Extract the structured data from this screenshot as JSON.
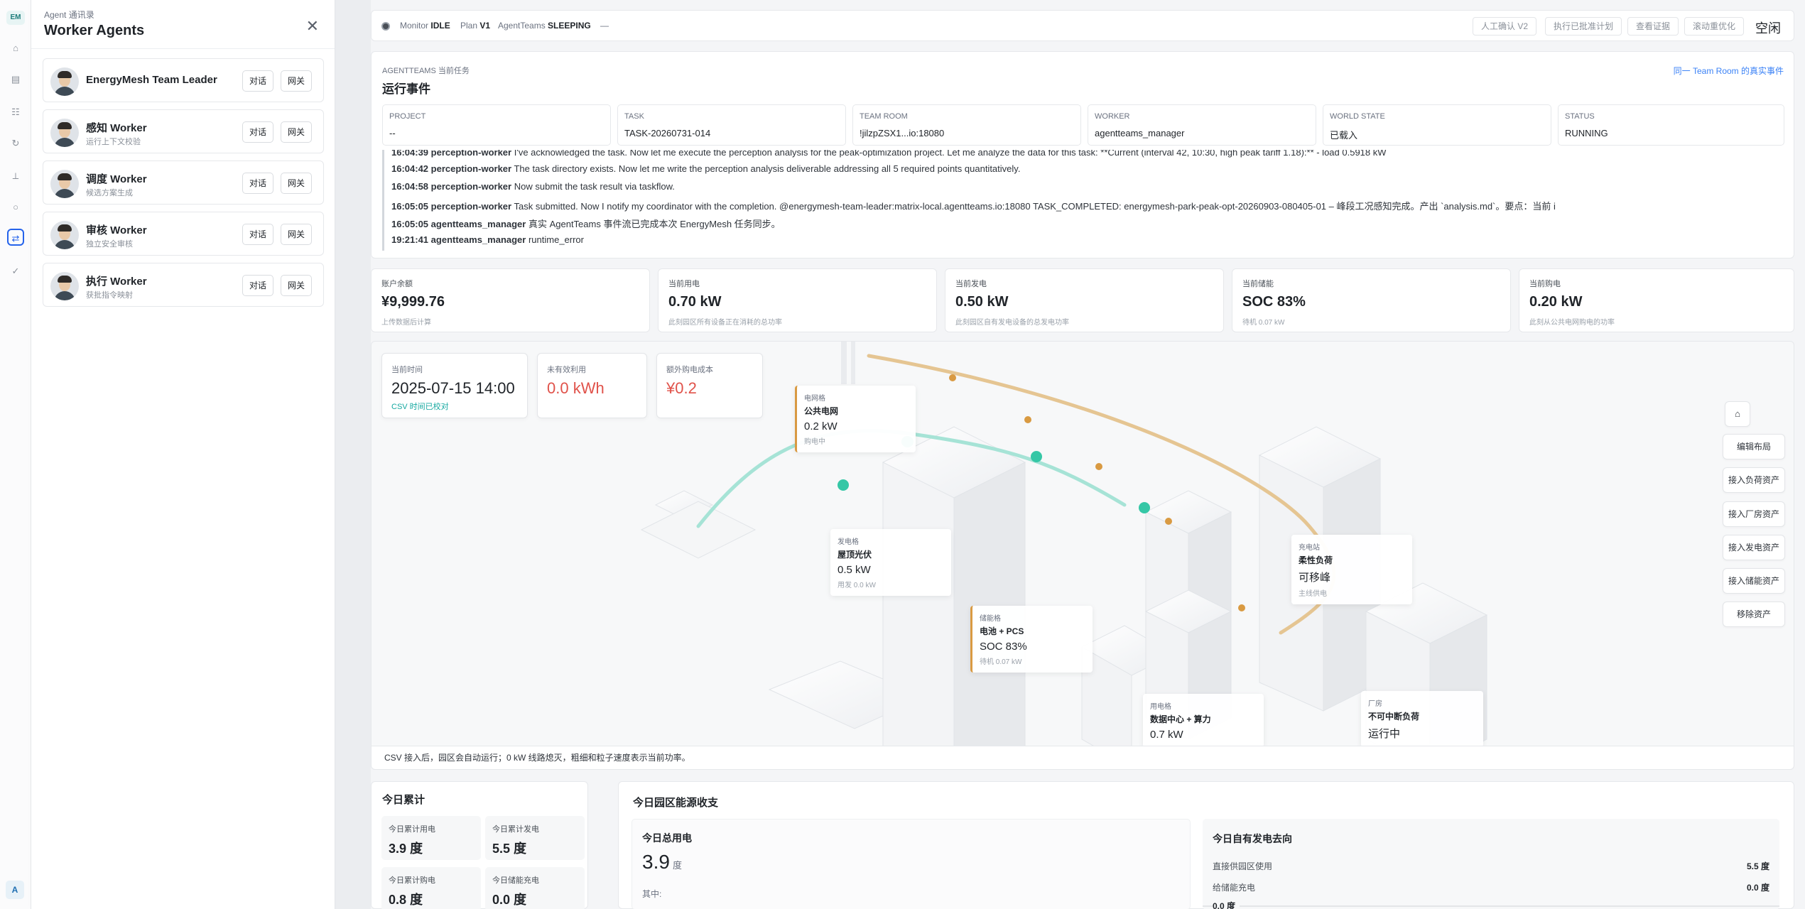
{
  "rail": {
    "logo": "EM",
    "user": "A"
  },
  "drawer": {
    "eyebrow": "Agent 通讯录",
    "title": "Worker Agents",
    "close": "✕",
    "agents": [
      {
        "name": "EnergyMesh Team Leader",
        "sub": "",
        "chat": "对话",
        "gateway": "网关"
      },
      {
        "name": "感知 Worker",
        "sub": "运行上下文校验",
        "chat": "对话",
        "gateway": "网关"
      },
      {
        "name": "调度 Worker",
        "sub": "候选方案生成",
        "chat": "对话",
        "gateway": "网关"
      },
      {
        "name": "审核 Worker",
        "sub": "独立安全审核",
        "chat": "对话",
        "gateway": "网关"
      },
      {
        "name": "执行 Worker",
        "sub": "获批指令映射",
        "chat": "对话",
        "gateway": "网关"
      }
    ]
  },
  "topbar": {
    "monitor_label": "Monitor",
    "monitor_value": "IDLE",
    "plan_label": "Plan",
    "plan_value": "V1",
    "agentteams_label": "AgentTeams",
    "agentteams_value": "SLEEPING",
    "dash": "—",
    "buttons": [
      "人工确认 V2",
      "执行已批准计划",
      "查看证据",
      "滚动重优化"
    ],
    "status": "空闲"
  },
  "task": {
    "eyebrow": "AGENTTEAMS 当前任务",
    "title": "运行事件",
    "link": "同一 Team Room 的真实事件",
    "fields": [
      {
        "k": "PROJECT",
        "v": "--"
      },
      {
        "k": "TASK",
        "v": "TASK-20260731-014"
      },
      {
        "k": "TEAM ROOM",
        "v": "!jilzpZSX1...io:18080"
      },
      {
        "k": "WORKER",
        "v": "agentteams_manager"
      },
      {
        "k": "WORLD STATE",
        "v": "已载入"
      },
      {
        "k": "STATUS",
        "v": "RUNNING"
      }
    ],
    "logs": [
      {
        "t": "16:04:39",
        "who": "perception-worker",
        "msg": "I've acknowledged the task. Now let me execute the perception analysis for the peak-optimization project. Let me analyze the data for this task: **Current (interval 42, 10:30, high peak tariff 1.18):** - load 0.5918 kW"
      },
      {
        "t": "16:04:42",
        "who": "perception-worker",
        "msg": "The task directory exists. Now let me write the perception analysis deliverable addressing all 5 required points quantitatively."
      },
      {
        "t": "16:04:58",
        "who": "perception-worker",
        "msg": "Now submit the task result via taskflow."
      },
      {
        "t": "16:05:05",
        "who": "perception-worker",
        "msg": "Task submitted. Now I notify my coordinator with the completion. @energymesh-team-leader:matrix-local.agentteams.io:18080 TASK_COMPLETED: energymesh-park-peak-opt-20260903-080405-01 – 峰段工况感知完成。产出 `analysis.md`。要点：当前 i"
      },
      {
        "t": "16:05:05",
        "who": "agentteams_manager",
        "msg": "真实 AgentTeams 事件流已完成本次 EnergyMesh 任务同步。"
      },
      {
        "t": "19:21:41",
        "who": "agentteams_manager",
        "msg": "runtime_error"
      }
    ]
  },
  "metrics": [
    {
      "k": "账户余额",
      "v": "¥9,999.76",
      "s": "上传数据后计算"
    },
    {
      "k": "当前用电",
      "v": "0.70 kW",
      "s": "此刻园区所有设备正在消耗的总功率"
    },
    {
      "k": "当前发电",
      "v": "0.50 kW",
      "s": "此刻园区自有发电设备的总发电功率"
    },
    {
      "k": "当前储能",
      "v": "SOC 83%",
      "s": "待机 0.07 kW"
    },
    {
      "k": "当前购电",
      "v": "0.20 kW",
      "s": "此刻从公共电网购电的功率"
    }
  ],
  "scene": {
    "info": [
      {
        "k": "当前时间",
        "v": "2025-07-15 14:00",
        "s": "CSV 时间已校对"
      },
      {
        "k": "未有效利用",
        "v": "0.0 kWh"
      },
      {
        "k": "额外购电成本",
        "v": "¥0.2"
      }
    ],
    "nodes": [
      {
        "k": "电网格",
        "n": "公共电网",
        "v": "0.2 kW",
        "s": "购电中"
      },
      {
        "k": "发电格",
        "n": "屋顶光伏",
        "v": "0.5 kW",
        "s": "用发 0.0 kW"
      },
      {
        "k": "储能格",
        "n": "电池 + PCS",
        "v": "SOC 83%",
        "s": "待机 0.07 kW"
      },
      {
        "k": "充电站",
        "n": "柔性负荷",
        "v": "可移峰",
        "s": "主线供电"
      },
      {
        "k": "用电格",
        "n": "数据中心 + 算力",
        "v": "0.7 kW",
        "s": ""
      },
      {
        "k": "厂房",
        "n": "不可中断负荷",
        "v": "运行中",
        "s": ""
      }
    ],
    "tools": {
      "home": "⌂",
      "items": [
        "编辑布局",
        "接入负荷资产",
        "接入厂房资产",
        "接入发电资产",
        "接入储能资产",
        "移除资产"
      ]
    },
    "footnote": "CSV 接入后，园区会自动运行；0 kW 线路熄灭，粗细和粒子速度表示当前功率。"
  },
  "totals": {
    "title": "今日累计",
    "items": [
      {
        "k": "今日累计用电",
        "v": "3.9 度"
      },
      {
        "k": "今日累计发电",
        "v": "5.5 度"
      },
      {
        "k": "今日累计购电",
        "v": "0.8 度"
      },
      {
        "k": "今日储能充电",
        "v": "0.0 度"
      }
    ]
  },
  "energy": {
    "title": "今日园区能源收支",
    "left": {
      "k": "今日总用电",
      "v": "3.9",
      "u": "度",
      "s": "其中:"
    },
    "right": {
      "k": "今日自有发电去向",
      "rows": [
        {
          "k": "直接供园区使用",
          "v": "5.5 度"
        },
        {
          "k": "给储能充电",
          "v": "0.0 度"
        }
      ],
      "zero": "0.0 度"
    }
  }
}
